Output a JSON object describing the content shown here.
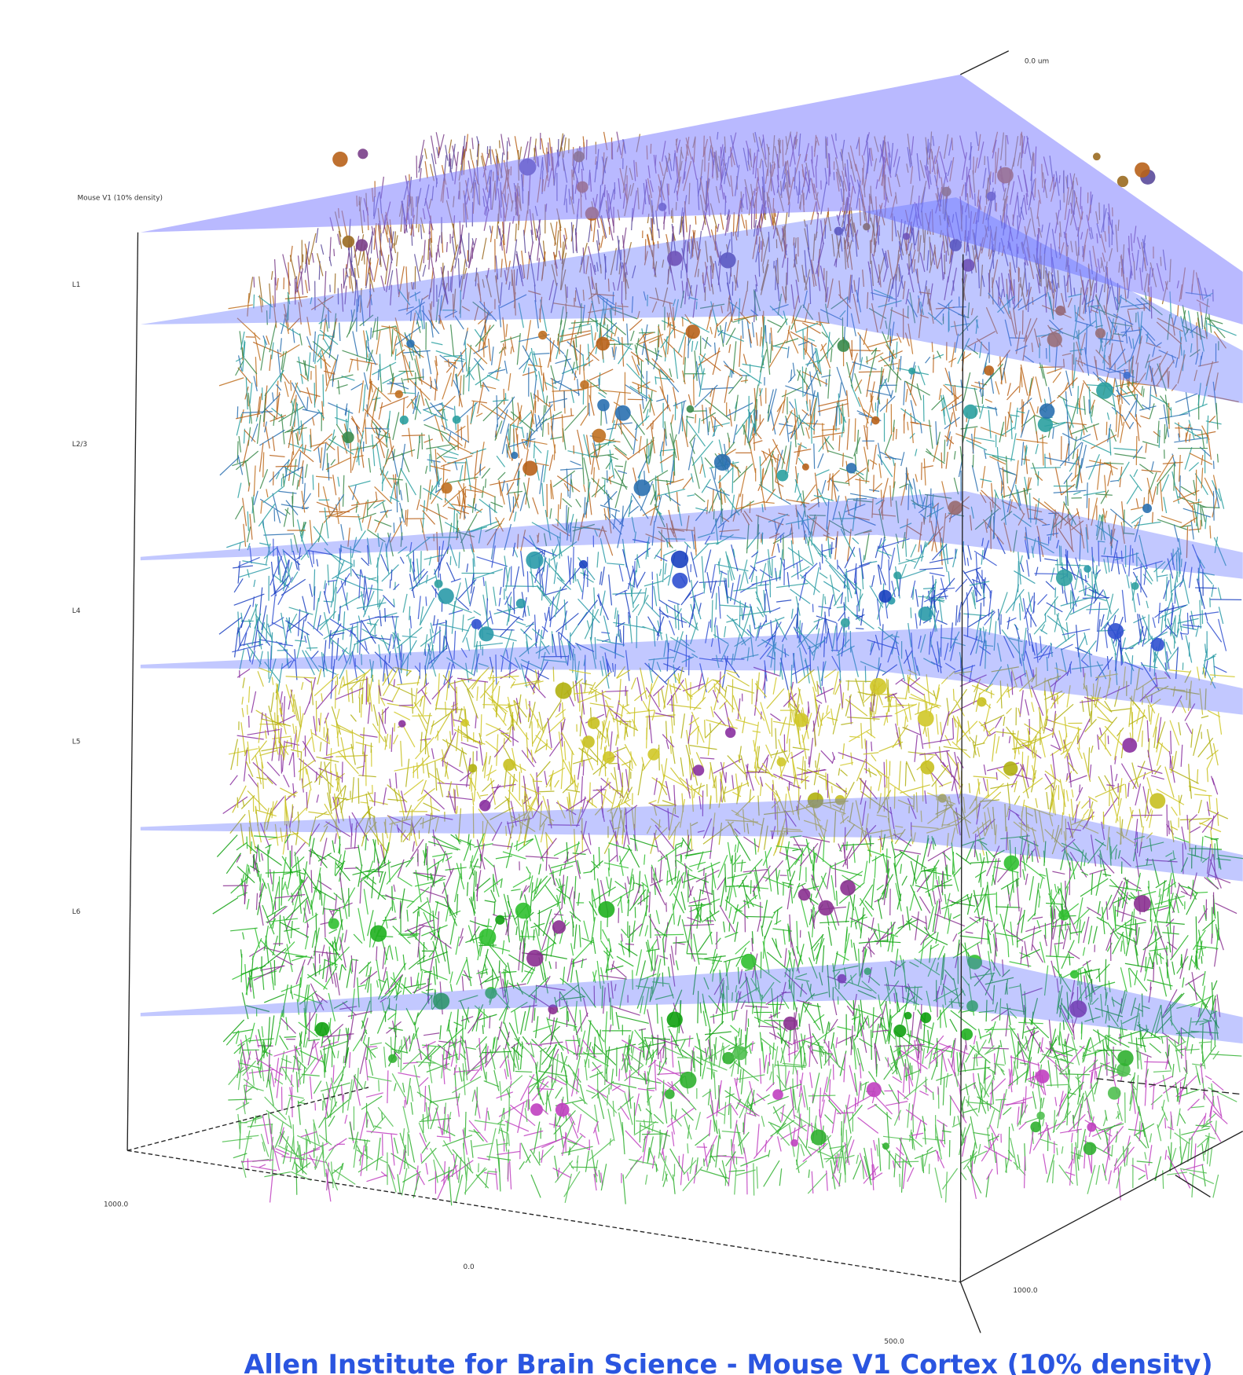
{
  "header": {
    "title": "Mouse V1 (10% density)"
  },
  "layers": [
    "L1",
    "L2/3",
    "L4",
    "L5",
    "L6"
  ],
  "axis_labels": {
    "top": "0.0 um",
    "left": "1000.0",
    "front": "0.0",
    "right": "1000.0",
    "bottom": "500.0"
  },
  "caption": "Allen Institute for Brain Science - Mouse V1 Cortex (10% density)"
}
